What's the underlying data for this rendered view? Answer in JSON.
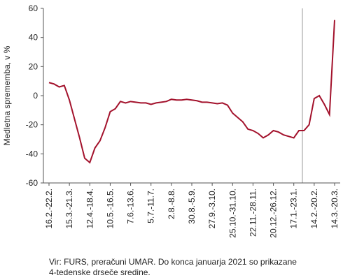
{
  "chart_data": {
    "type": "line",
    "ylabel": "Medletna sprememba, v %",
    "source": [
      "Vir: FURS, preračuni UMAR. Do konca januarja 2021 so prikazane",
      "4-tedenske drseče sredine."
    ],
    "categories": [
      "16.2.-22.2.",
      null,
      null,
      null,
      "15.3.-21.3.",
      null,
      null,
      null,
      "12.4.-18.4.",
      null,
      null,
      null,
      "10.5.-16.5.",
      null,
      null,
      null,
      "7.6.-13.6.",
      null,
      null,
      null,
      "5.7.-11.7.",
      null,
      null,
      null,
      "2.8.-8.8.",
      null,
      null,
      null,
      "30.8.-5.9.",
      null,
      null,
      null,
      "27.9.-3.10.",
      null,
      null,
      null,
      "25.10.-31.10.",
      null,
      null,
      null,
      "22.11.-28.11.",
      null,
      null,
      null,
      "20.12.-26.12.",
      null,
      null,
      null,
      "17.1.-23.1.",
      null,
      null,
      null,
      "14.2.-20.2.",
      null,
      null,
      null,
      "14.3.-20.3."
    ],
    "series": [
      {
        "color": "#a3122c",
        "values": [
          9,
          8,
          6,
          7,
          -3,
          -16,
          -29,
          -43,
          -46,
          -36,
          -31,
          -22,
          -11,
          -9,
          -4,
          -5,
          -4,
          -4.5,
          -5,
          -5,
          -6,
          -5,
          -4.5,
          -4,
          -2.5,
          -3,
          -3,
          -2.5,
          -3,
          -3.5,
          -4.5,
          -4.5,
          -5,
          -5.5,
          -5,
          -6.5,
          -12,
          -15,
          -18,
          -23,
          -24,
          -26,
          -29,
          -27,
          -24,
          -25,
          -27,
          -28,
          -29,
          -24,
          -24,
          -20,
          -2,
          0,
          -6,
          -13,
          52
        ]
      }
    ],
    "ylim": [
      -60,
      60
    ],
    "yticks": [
      -60,
      -40,
      -20,
      0,
      20,
      40,
      60
    ]
  }
}
